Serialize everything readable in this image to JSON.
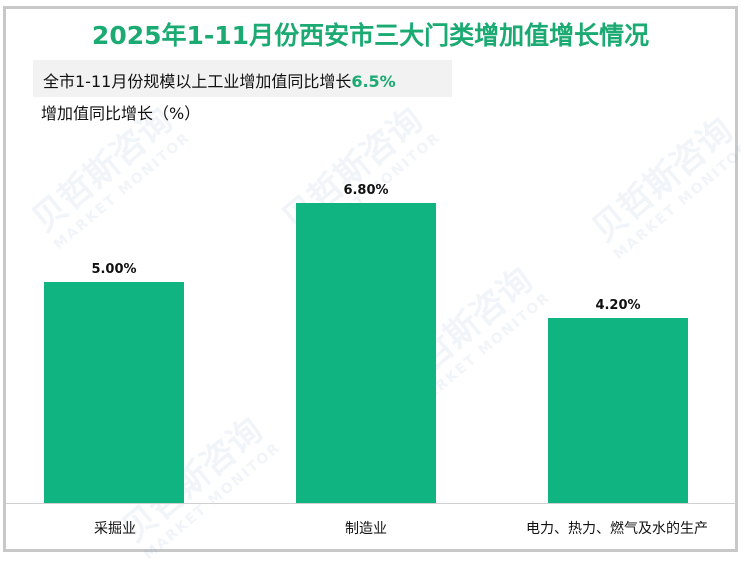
{
  "title": "2025年1-11月份西安市三大门类增加值增长情况",
  "note": {
    "text": "全市1-11月份规模以上工业增加值同比增长",
    "highlight": "6.5%"
  },
  "y_axis_label": "增加值同比增长（%）",
  "watermark": {
    "cn": "贝哲斯咨询",
    "en": "MARKET MONITOR"
  },
  "colors": {
    "bar": "#10b481",
    "title": "#1aaa72",
    "highlight": "#1aaa72"
  },
  "bars": [
    {
      "label": "采掘业",
      "value_label": "5.00%"
    },
    {
      "label": "制造业",
      "value_label": "6.80%"
    },
    {
      "label": "电力、热力、燃气及水的生产",
      "value_label": "4.20%"
    }
  ],
  "chart_data": {
    "type": "bar",
    "title": "2025年1-11月份西安市三大门类增加值增长情况",
    "subtitle": "全市1-11月份规模以上工业增加值同比增长6.5%",
    "categories": [
      "采掘业",
      "制造业",
      "电力、热力、燃气及水的生产"
    ],
    "values": [
      5.0,
      6.8,
      4.2
    ],
    "xlabel": "",
    "ylabel": "增加值同比增长（%）",
    "ylim": [
      0,
      7
    ],
    "grid": false,
    "legend": "none",
    "data_labels": [
      "5.00%",
      "6.80%",
      "4.20%"
    ]
  }
}
